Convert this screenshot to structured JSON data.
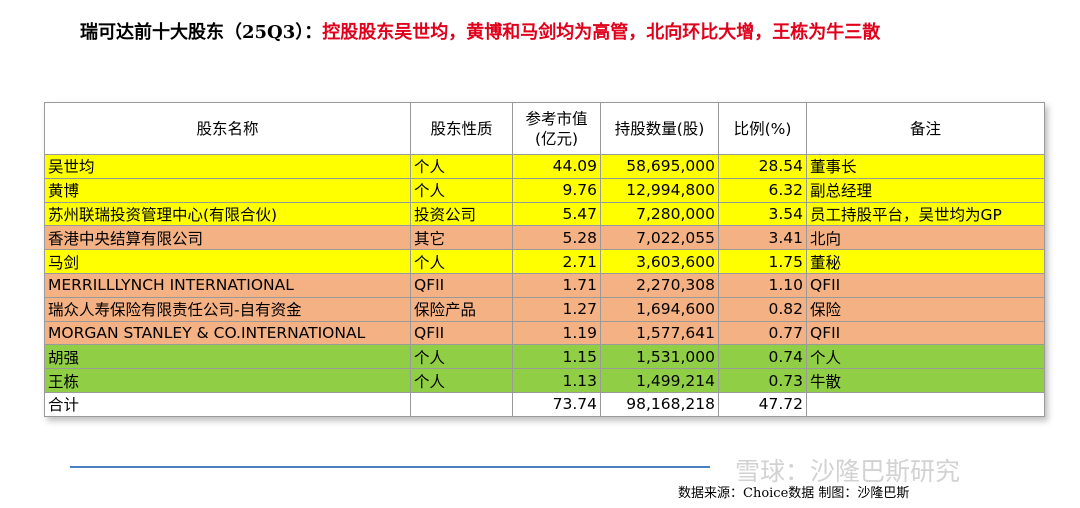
{
  "header": {
    "title": "瑞可达前十大股东（25Q3）：",
    "highlight": "控股股东吴世均，黄博和马剑均为高管，北向环比大增，王栋为牛三散"
  },
  "table": {
    "headers": [
      "股东名称",
      "股东性质",
      [
        "参考市值",
        "(亿元)"
      ],
      "持股数量(股)",
      "比例(%)",
      "备注"
    ],
    "rows": [
      {
        "cells": [
          "吴世均",
          "个人",
          "44.09",
          "58,695,000",
          "28.54",
          "董事长"
        ],
        "color": "#ffff00"
      },
      {
        "cells": [
          "黄博",
          "个人",
          "9.76",
          "12,994,800",
          "6.32",
          "副总经理"
        ],
        "color": "#ffff00"
      },
      {
        "cells": [
          "苏州联瑞投资管理中心(有限合伙)",
          "投资公司",
          "5.47",
          "7,280,000",
          "3.54",
          "员工持股平台，吴世均为GP"
        ],
        "color": "#ffff00"
      },
      {
        "cells": [
          "香港中央结算有限公司",
          "其它",
          "5.28",
          "7,022,055",
          "3.41",
          "北向"
        ],
        "color": "#f4b183"
      },
      {
        "cells": [
          "马剑",
          "个人",
          "2.71",
          "3,603,600",
          "1.75",
          "董秘"
        ],
        "color": "#ffff00"
      },
      {
        "cells": [
          "MERRILLLYNCH INTERNATIONAL",
          "QFII",
          "1.71",
          "2,270,308",
          "1.10",
          "QFII"
        ],
        "color": "#f4b183"
      },
      {
        "cells": [
          "瑞众人寿保险有限责任公司-自有资金",
          "保险产品",
          "1.27",
          "1,694,600",
          "0.82",
          "保险"
        ],
        "color": "#f4b183"
      },
      {
        "cells": [
          "MORGAN STANLEY & CO.INTERNATIONAL",
          "QFII",
          "1.19",
          "1,577,641",
          "0.77",
          "QFII"
        ],
        "color": "#f4b183"
      },
      {
        "cells": [
          "胡强",
          "个人",
          "1.15",
          "1,531,000",
          "0.74",
          "个人"
        ],
        "color": "#8fce45"
      },
      {
        "cells": [
          "王栋",
          "个人",
          "1.13",
          "1,499,214",
          "0.73",
          "牛散"
        ],
        "color": "#8fce45"
      }
    ],
    "total": [
      "合计",
      "73.74",
      "98,168,218",
      "47.72"
    ]
  },
  "footer": {
    "source": "数据来源：Choice数据 制图：沙隆巴斯",
    "watermark": "雪球：沙隆巴斯研究"
  }
}
